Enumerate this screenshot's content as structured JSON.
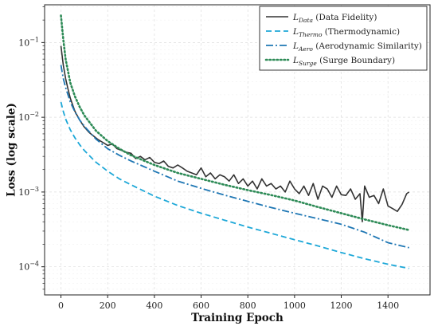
{
  "chart_data": {
    "type": "line",
    "xlabel": "Training Epoch",
    "ylabel": "Loss (log scale)",
    "xlim": [
      -70,
      1580
    ],
    "ylim": [
      4.2e-05,
      0.32
    ],
    "yscale": "log",
    "grid": true,
    "legend_position": "top-right",
    "x_ticks": [
      0,
      200,
      400,
      600,
      800,
      1000,
      1200,
      1400
    ],
    "x_tick_labels": [
      "0",
      "200",
      "400",
      "600",
      "800",
      "1000",
      "1200",
      "1400"
    ],
    "y_ticks": [
      0.0001,
      0.001,
      0.01,
      0.1
    ],
    "y_tick_labels": [
      {
        "base": "10",
        "exp": "−4"
      },
      {
        "base": "10",
        "exp": "−3"
      },
      {
        "base": "10",
        "exp": "−2"
      },
      {
        "base": "10",
        "exp": "−1"
      }
    ],
    "series": [
      {
        "name_main": "L",
        "name_sub": "Data",
        "name_rest": " (Data Fidelity)",
        "color": "#333333",
        "dash": "solid",
        "x": [
          0,
          10,
          20,
          30,
          40,
          60,
          80,
          100,
          120,
          140,
          160,
          180,
          200,
          220,
          240,
          260,
          280,
          300,
          320,
          340,
          360,
          380,
          400,
          420,
          440,
          460,
          480,
          500,
          520,
          540,
          560,
          580,
          600,
          620,
          640,
          660,
          680,
          700,
          720,
          740,
          760,
          780,
          800,
          820,
          840,
          860,
          880,
          900,
          920,
          940,
          960,
          980,
          1000,
          1020,
          1040,
          1060,
          1080,
          1100,
          1120,
          1140,
          1160,
          1180,
          1200,
          1220,
          1240,
          1260,
          1280,
          1290,
          1300,
          1320,
          1340,
          1360,
          1380,
          1400,
          1420,
          1440,
          1460,
          1480,
          1490
        ],
        "y": [
          0.09,
          0.05,
          0.033,
          0.024,
          0.018,
          0.012,
          0.0092,
          0.0074,
          0.0063,
          0.0056,
          0.005,
          0.0046,
          0.0042,
          0.0044,
          0.0038,
          0.0036,
          0.0034,
          0.0033,
          0.0028,
          0.003,
          0.0027,
          0.0029,
          0.0025,
          0.0024,
          0.0026,
          0.0022,
          0.0021,
          0.0023,
          0.0021,
          0.0019,
          0.0018,
          0.0017,
          0.0021,
          0.0016,
          0.0018,
          0.0015,
          0.0017,
          0.0016,
          0.0014,
          0.0017,
          0.0013,
          0.0015,
          0.0012,
          0.0014,
          0.0011,
          0.0015,
          0.0012,
          0.0013,
          0.0011,
          0.0012,
          0.001,
          0.0014,
          0.0011,
          0.00095,
          0.0012,
          0.0009,
          0.0013,
          0.0008,
          0.0012,
          0.0011,
          0.00085,
          0.0012,
          0.00092,
          0.0009,
          0.0011,
          0.0008,
          0.00095,
          0.0004,
          0.0012,
          0.00085,
          0.0009,
          0.0007,
          0.0011,
          0.00065,
          0.0006,
          0.00055,
          0.00068,
          0.00095,
          0.001
        ]
      },
      {
        "name_main": "L",
        "name_sub": "Thermo",
        "name_rest": " (Thermodynamic)",
        "color": "#1ea8d8",
        "dash": "dashed",
        "x": [
          0,
          10,
          20,
          40,
          60,
          80,
          100,
          150,
          200,
          250,
          300,
          400,
          500,
          600,
          700,
          800,
          900,
          1000,
          1100,
          1200,
          1300,
          1400,
          1490
        ],
        "y": [
          0.016,
          0.012,
          0.0095,
          0.0068,
          0.0053,
          0.0043,
          0.0036,
          0.0025,
          0.0019,
          0.0015,
          0.00125,
          0.00088,
          0.00066,
          0.00052,
          0.00042,
          0.00034,
          0.00028,
          0.00023,
          0.00019,
          0.000155,
          0.000128,
          0.000108,
          9.5e-05
        ]
      },
      {
        "name_main": "L",
        "name_sub": "Aero",
        "name_rest": " (Aerodynamic Similarity)",
        "color": "#1f77b4",
        "dash": "dashdot",
        "x": [
          0,
          10,
          20,
          40,
          60,
          80,
          100,
          150,
          200,
          250,
          300,
          400,
          500,
          600,
          700,
          800,
          900,
          1000,
          1100,
          1200,
          1300,
          1400,
          1490
        ],
        "y": [
          0.05,
          0.033,
          0.025,
          0.016,
          0.0118,
          0.0092,
          0.0076,
          0.0051,
          0.0038,
          0.0031,
          0.0026,
          0.0019,
          0.0014,
          0.00112,
          0.00091,
          0.00075,
          0.00062,
          0.00052,
          0.00044,
          0.00037,
          0.00029,
          0.00021,
          0.00018
        ]
      },
      {
        "name_main": "L",
        "name_sub": "Surge",
        "name_rest": " (Surge Boundary)",
        "color": "#2e8b57",
        "dash": "dotted",
        "x": [
          0,
          10,
          20,
          40,
          60,
          80,
          100,
          150,
          200,
          250,
          300,
          400,
          500,
          600,
          700,
          800,
          900,
          1000,
          1100,
          1200,
          1300,
          1400,
          1490
        ],
        "y": [
          0.23,
          0.11,
          0.06,
          0.029,
          0.019,
          0.0138,
          0.0106,
          0.0066,
          0.0048,
          0.0038,
          0.0031,
          0.0023,
          0.0018,
          0.0015,
          0.00125,
          0.00106,
          0.00091,
          0.00077,
          0.00063,
          0.00052,
          0.00043,
          0.00036,
          0.00031
        ]
      }
    ]
  }
}
